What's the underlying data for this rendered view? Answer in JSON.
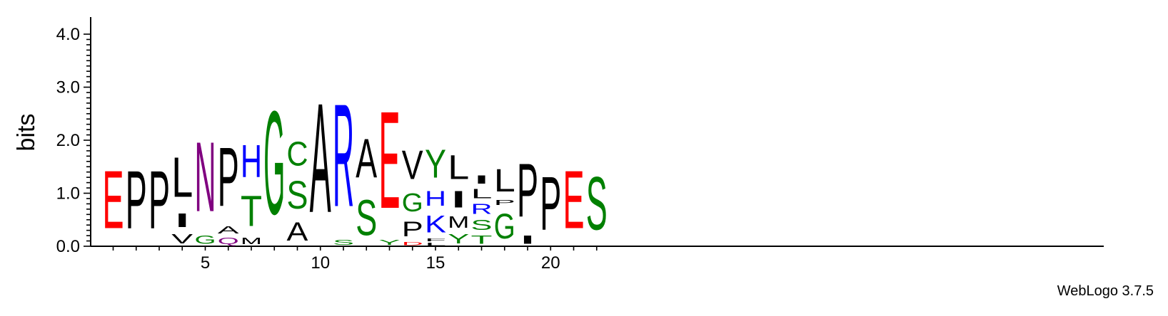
{
  "chart_data": {
    "type": "sequence-logo",
    "ylabel": "bits",
    "ylim": [
      0,
      4.0
    ],
    "yticks": [
      "0.0",
      "1.0",
      "2.0",
      "3.0",
      "4.0"
    ],
    "xlim": [
      1,
      22
    ],
    "xticks": [
      "5",
      "10",
      "15",
      "20"
    ],
    "credit": "WebLogo 3.7.5",
    "colors": {
      "red": "#ff0000",
      "black": "#000000",
      "green": "#008000",
      "blue": "#0000ff",
      "purple": "#800080"
    },
    "positions": [
      {
        "pos": 1,
        "stack": [
          {
            "letter": "E",
            "height": 1.75,
            "color": "red"
          }
        ]
      },
      {
        "pos": 2,
        "stack": [
          {
            "letter": "P",
            "height": 1.75,
            "color": "black"
          }
        ]
      },
      {
        "pos": 3,
        "stack": [
          {
            "letter": "P",
            "height": 1.75,
            "color": "black"
          }
        ]
      },
      {
        "pos": 4,
        "stack": [
          {
            "letter": "V",
            "height": 0.28,
            "color": "black"
          },
          {
            "letter": "I",
            "height": 0.42,
            "color": "black"
          },
          {
            "letter": "L",
            "height": 1.2,
            "color": "black"
          }
        ]
      },
      {
        "pos": 5,
        "stack": [
          {
            "letter": "G",
            "height": 0.25,
            "color": "green"
          },
          {
            "letter": "N",
            "height": 2.1,
            "color": "purple"
          }
        ]
      },
      {
        "pos": 6,
        "stack": [
          {
            "letter": "Q",
            "height": 0.2,
            "color": "purple"
          },
          {
            "letter": "A",
            "height": 0.22,
            "color": "black"
          },
          {
            "letter": "P",
            "height": 1.77,
            "color": "black"
          }
        ]
      },
      {
        "pos": 7,
        "stack": [
          {
            "letter": "M",
            "height": 0.2,
            "color": "black"
          },
          {
            "letter": "T",
            "height": 0.92,
            "color": "green"
          },
          {
            "letter": "H",
            "height": 0.97,
            "color": "blue"
          }
        ]
      },
      {
        "pos": 8,
        "stack": [
          {
            "letter": "G",
            "height": 3.12,
            "color": "green"
          }
        ]
      },
      {
        "pos": 9,
        "stack": [
          {
            "letter": "A",
            "height": 0.55,
            "color": "black"
          },
          {
            "letter": "S",
            "height": 0.83,
            "color": "green"
          },
          {
            "letter": "C",
            "height": 0.72,
            "color": "green"
          }
        ]
      },
      {
        "pos": 10,
        "stack": [
          {
            "letter": "A",
            "height": 3.3,
            "color": "black"
          }
        ]
      },
      {
        "pos": 11,
        "stack": [
          {
            "letter": "S",
            "height": 0.15,
            "color": "green"
          },
          {
            "letter": "R",
            "height": 3.1,
            "color": "blue"
          }
        ]
      },
      {
        "pos": 12,
        "stack": [
          {
            "letter": "S",
            "height": 1.07,
            "color": "green"
          },
          {
            "letter": "A",
            "height": 1.17,
            "color": "black"
          }
        ]
      },
      {
        "pos": 13,
        "stack": [
          {
            "letter": "Y",
            "height": 0.15,
            "color": "green"
          },
          {
            "letter": "E",
            "height": 2.93,
            "color": "red"
          }
        ]
      },
      {
        "pos": 14,
        "stack": [
          {
            "letter": "D",
            "height": 0.1,
            "color": "red"
          },
          {
            "letter": "P",
            "height": 0.45,
            "color": "black"
          },
          {
            "letter": "G",
            "height": 0.55,
            "color": "green"
          },
          {
            "letter": "V",
            "height": 0.87,
            "color": "black"
          }
        ]
      },
      {
        "pos": 15,
        "stack": [
          {
            "letter": "L",
            "height": 0.08,
            "color": "black"
          },
          {
            "letter": "F",
            "height": 0.08,
            "color": "black"
          },
          {
            "letter": "K",
            "height": 0.52,
            "color": "blue"
          },
          {
            "letter": "H",
            "height": 0.45,
            "color": "blue"
          },
          {
            "letter": "Y",
            "height": 0.85,
            "color": "green"
          }
        ]
      },
      {
        "pos": 16,
        "stack": [
          {
            "letter": "Y",
            "height": 0.28,
            "color": "green"
          },
          {
            "letter": "M",
            "height": 0.35,
            "color": "black"
          },
          {
            "letter": "I",
            "height": 0.5,
            "color": "black"
          },
          {
            "letter": "L",
            "height": 0.72,
            "color": "black"
          }
        ]
      },
      {
        "pos": 17,
        "stack": [
          {
            "letter": "T",
            "height": 0.25,
            "color": "green"
          },
          {
            "letter": "S",
            "height": 0.3,
            "color": "green"
          },
          {
            "letter": "R",
            "height": 0.3,
            "color": "blue"
          },
          {
            "letter": "L",
            "height": 0.28,
            "color": "black"
          },
          {
            "letter": "I",
            "height": 0.25,
            "color": "black"
          }
        ]
      },
      {
        "pos": 18,
        "stack": [
          {
            "letter": "G",
            "height": 0.75,
            "color": "green"
          },
          {
            "letter": "P",
            "height": 0.15,
            "color": "black"
          },
          {
            "letter": "L",
            "height": 0.68,
            "color": "black"
          }
        ]
      },
      {
        "pos": 19,
        "stack": [
          {
            "letter": "I",
            "height": 0.25,
            "color": "black"
          },
          {
            "letter": "P",
            "height": 1.6,
            "color": "black"
          }
        ]
      },
      {
        "pos": 20,
        "stack": [
          {
            "letter": "P",
            "height": 1.6,
            "color": "black"
          }
        ]
      },
      {
        "pos": 21,
        "stack": [
          {
            "letter": "E",
            "height": 1.75,
            "color": "red"
          }
        ]
      },
      {
        "pos": 22,
        "stack": [
          {
            "letter": "S",
            "height": 1.6,
            "color": "green"
          }
        ]
      }
    ]
  }
}
